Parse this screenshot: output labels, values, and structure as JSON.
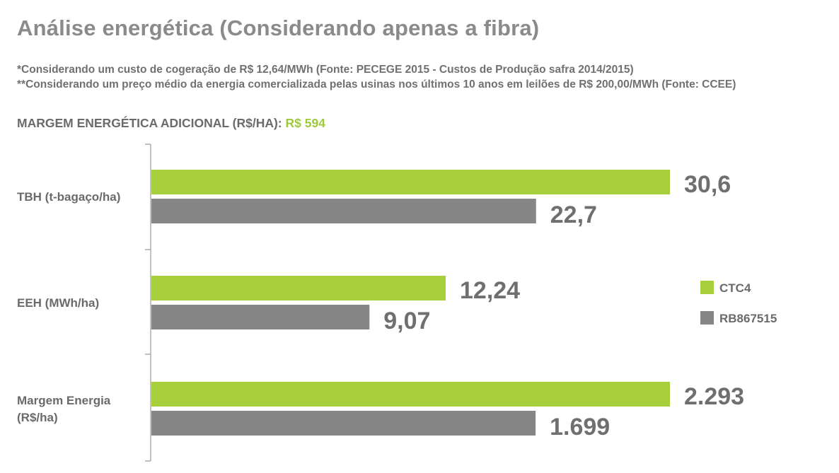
{
  "header": {
    "title": "Análise energética (Considerando apenas a fibra)",
    "note1": "*Considerando um custo de cogeração de R$ 12,64/MWh (Fonte: PECEGE 2015 - Custos de Produção safra 2014/2015)",
    "note2": "**Considerando um preço médio da energia comercializada pelas usinas nos últimos 10 anos em leilões de R$ 200,00/MWh (Fonte: CCEE)",
    "margin_label": "MARGEM ENERGÉTICA ADICIONAL (R$/HA): ",
    "margin_value": "R$ 594"
  },
  "colors": {
    "ctc4": "#a6cf3b",
    "rb867515": "#868686",
    "axis": "#9a9a9a"
  },
  "chart_data": {
    "type": "bar",
    "orientation": "horizontal",
    "categories": [
      [
        "TBH (t-bagaço/ha)"
      ],
      [
        "EEH (MWh/ha)"
      ],
      [
        "Margem Energia",
        "(R$/ha)"
      ]
    ],
    "series": [
      {
        "name": "CTC4",
        "values": [
          30.6,
          12.24,
          2293
        ],
        "labels": [
          "30,6",
          "12,24",
          "2.293"
        ]
      },
      {
        "name": "RB867515",
        "values": [
          22.7,
          9.07,
          1699
        ],
        "labels": [
          "22,7",
          "9,07",
          "1.699"
        ]
      }
    ],
    "legend": "right",
    "grid": false
  }
}
